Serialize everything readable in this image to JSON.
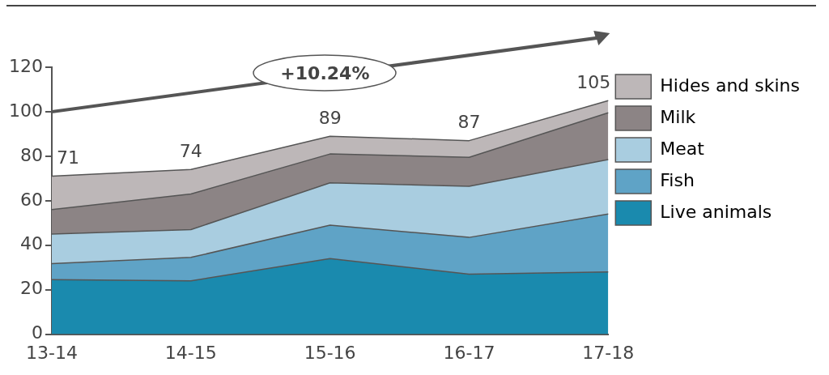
{
  "chart_data": {
    "type": "area",
    "stacked": true,
    "categories": [
      "13-14",
      "14-15",
      "15-16",
      "16-17",
      "17-18"
    ],
    "ylim": [
      0,
      120
    ],
    "yticks": [
      0,
      20,
      40,
      60,
      80,
      100,
      120
    ],
    "legend": "right",
    "line_style": "solid",
    "series": [
      {
        "name": "Live animals",
        "color": "#1a8aae",
        "values": [
          24.5,
          24,
          34,
          27,
          28
        ]
      },
      {
        "name": "Fish",
        "color": "#5fa3c6",
        "values": [
          7.2,
          10.5,
          15,
          16.5,
          26
        ]
      },
      {
        "name": "Meat",
        "color": "#a9cde0",
        "values": [
          13.3,
          12.5,
          19,
          23,
          24.5
        ]
      },
      {
        "name": "Milk",
        "color": "#8c8485",
        "values": [
          11,
          16,
          13,
          13,
          21
        ]
      },
      {
        "name": "Hides and skins",
        "color": "#bdb7b8",
        "values": [
          15,
          11,
          8,
          7.5,
          5.5
        ]
      }
    ],
    "totals": [
      "71",
      "74",
      "89",
      "87",
      "105"
    ],
    "annotations": [
      "+10.24%"
    ]
  }
}
